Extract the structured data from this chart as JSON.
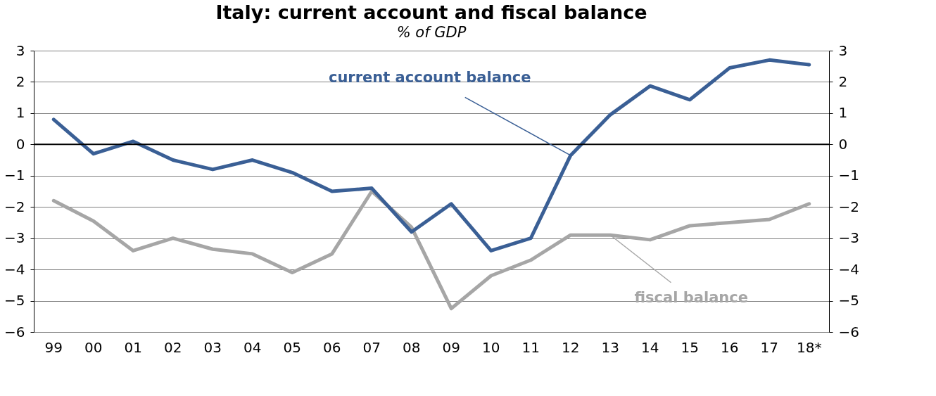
{
  "chart_data": {
    "type": "line",
    "title": "Italy: current account and fiscal balance",
    "subtitle": "% of GDP",
    "categories": [
      "99",
      "00",
      "01",
      "02",
      "03",
      "04",
      "05",
      "06",
      "07",
      "08",
      "09",
      "10",
      "11",
      "12",
      "13",
      "14",
      "15",
      "16",
      "17",
      "18*"
    ],
    "series": [
      {
        "color": "#3a5f95",
        "values": [
          0.8,
          -0.3,
          0.1,
          -0.5,
          -0.8,
          -0.5,
          -0.9,
          -1.5,
          -1.4,
          -2.8,
          -1.9,
          -3.4,
          -3.0,
          -0.35,
          0.95,
          1.87,
          1.43,
          2.45,
          2.7,
          2.55
        ]
      },
      {
        "color": "#a6a6a6",
        "values": [
          -1.8,
          -2.45,
          -3.4,
          -3.0,
          -3.35,
          -3.5,
          -4.1,
          -3.5,
          -1.5,
          -2.65,
          -5.25,
          -4.2,
          -3.7,
          -2.9,
          -2.9,
          -3.05,
          -2.6,
          -2.5,
          -2.4,
          -1.9
        ]
      }
    ],
    "annotations": [
      {
        "text": "current account balance",
        "x": "12",
        "y": -0.35
      },
      {
        "text": "fiscal balance",
        "x": "13",
        "y": -2.9
      }
    ],
    "ylim": [
      -6,
      3
    ],
    "yticks": [
      -6,
      -5,
      -4,
      -3,
      -2,
      -1,
      0,
      1,
      2,
      3
    ],
    "y2lim": [
      -6,
      3
    ],
    "y2ticks": [
      -6,
      -5,
      -4,
      -3,
      -2,
      -1,
      0,
      1,
      2,
      3
    ],
    "ref_lines": [
      {
        "axis": "y",
        "value": 0,
        "color": "#000000"
      }
    ],
    "grid": "y",
    "marker": "none",
    "line_style": "solid"
  }
}
